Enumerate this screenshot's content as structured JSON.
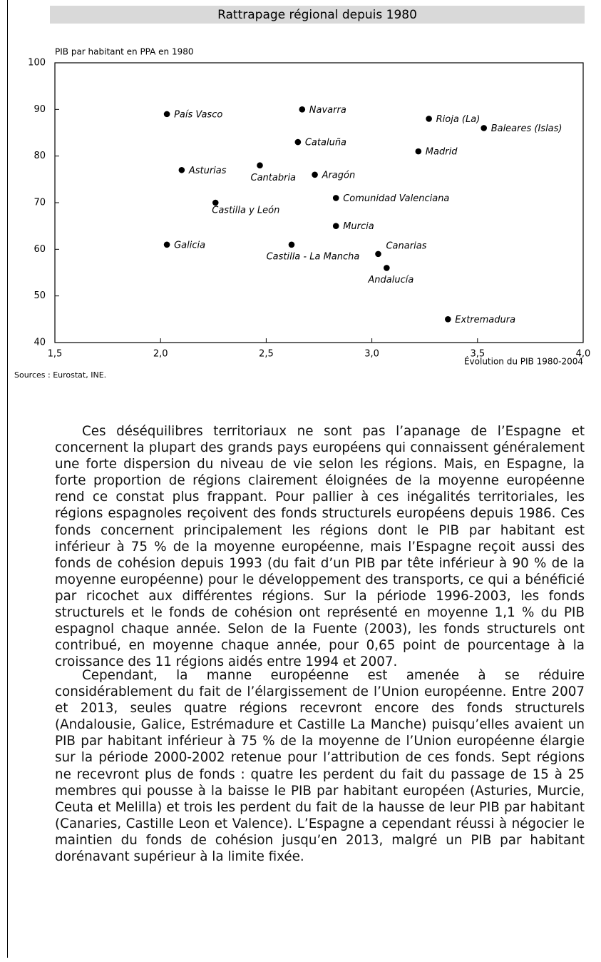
{
  "chart_data": {
    "type": "scatter",
    "title": "Rattrapage régional depuis 1980",
    "y_label": "PIB par habitant en PPA en 1980",
    "x_label": "Évolution du PIB 1980-2004",
    "source": "Sources : Eurostat, INE.",
    "color": "#000000",
    "labels": [
      "País Vasco",
      "Navarra",
      "Rioja (La)",
      "Baleares (Islas)",
      "Cataluña",
      "Madrid",
      "Asturias",
      "Cantabria",
      "Aragón",
      "Castilla y León",
      "Comunidad Valenciana",
      "Murcia",
      "Galicia",
      "Castilla - La Mancha",
      "Canarias",
      "Andalucía",
      "Extremadura"
    ],
    "x": [
      2.03,
      2.67,
      3.27,
      3.53,
      2.65,
      3.22,
      2.1,
      2.47,
      2.73,
      2.26,
      2.83,
      2.83,
      2.03,
      2.62,
      3.03,
      3.07,
      3.36
    ],
    "values": [
      89,
      90,
      88,
      86,
      83,
      81,
      77,
      78,
      76,
      70,
      71,
      65,
      61,
      61,
      59,
      56,
      45
    ],
    "xlim": [
      1.5,
      4.0
    ],
    "xticks": [
      {
        "value": 1.5,
        "label": "1,5"
      },
      {
        "value": 2.0,
        "label": "2,0"
      },
      {
        "value": 2.5,
        "label": "2,5"
      },
      {
        "value": 3.0,
        "label": "3,0"
      },
      {
        "value": 3.5,
        "label": "3,5"
      },
      {
        "value": 4.0,
        "label": "4,0"
      }
    ],
    "ylim": [
      40,
      100
    ],
    "yticks": [
      40,
      50,
      60,
      70,
      80,
      90,
      100
    ]
  },
  "document": {
    "paragraphs": [
      "Ces déséquilibres territoriaux ne sont pas l’apanage de l’Espagne et concernent la plupart des grands pays européens qui connaissent généralement une forte dispersion du niveau de vie selon les régions. Mais, en Espagne, la forte proportion de régions clairement éloignées de la moyenne européenne rend ce constat plus frappant. Pour pallier à ces inégalités territoriales, les régions espagnoles reçoivent des fonds structurels européens depuis 1986. Ces fonds concernent principalement les régions dont le PIB par habitant est inférieur à 75 % de la moyenne européenne, mais l’Espagne reçoit aussi des fonds de cohésion depuis 1993 (du fait d’un PIB par tête inférieur à 90 % de la moyenne européenne) pour le développement des transports, ce qui a bénéficié par ricochet aux différentes régions. Sur la période 1996-2003, les fonds structurels et le fonds de cohésion ont représenté en moyenne 1,1 % du PIB espagnol chaque année. Selon de la Fuente (2003), les fonds structurels ont contribué, en moyenne chaque année, pour 0,65 point de pourcentage à la croissance des 11 régions aidés entre 1994 et 2007.",
      "Cependant, la manne européenne est amenée à se réduire considérablement du fait de l’élargissement de l’Union européenne. Entre 2007 et 2013, seules quatre régions recevront encore des fonds structurels (Andalousie, Galice, Estrémadure et Castille La Manche) puisqu’elles avaient un PIB par habitant inférieur à 75 % de la moyenne de l’Union européenne élargie sur la période 2000-2002 retenue pour l’attribution de ces fonds. Sept régions ne recevront plus de fonds : quatre les perdent du fait du passage de 15 à 25 membres qui pousse à la baisse le PIB par habitant européen (Asturies, Murcie, Ceuta et Melilla) et trois les perdent du fait de la hausse de leur PIB par habitant (Canaries, Castille Leon et Valence). L’Espagne a cependant réussi à négocier le maintien du fonds de cohésion jusqu’en 2013, malgré un PIB par habitant dorénavant supérieur à la limite fixée."
    ]
  }
}
